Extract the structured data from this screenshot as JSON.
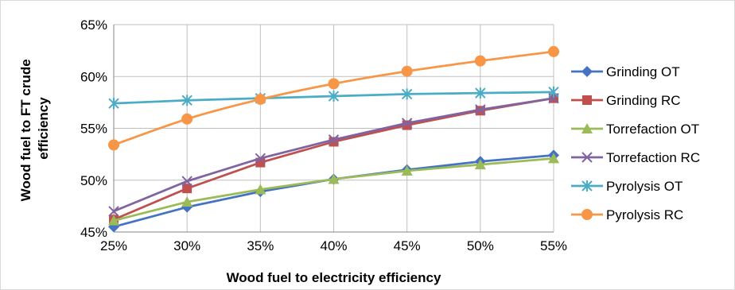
{
  "chart_data": {
    "type": "line",
    "x": [
      "25%",
      "30%",
      "35%",
      "40%",
      "45%",
      "50%",
      "55%"
    ],
    "x_values": [
      25,
      30,
      35,
      40,
      45,
      50,
      55
    ],
    "xlabel": "Wood fuel to electricity efficiency",
    "ylabel_lines": [
      "Wood fuel to FT crude",
      "efficiency"
    ],
    "ylim": [
      45,
      65
    ],
    "yticks": [
      45,
      50,
      55,
      60,
      65
    ],
    "ytick_labels": [
      "45%",
      "50%",
      "55%",
      "60%",
      "65%"
    ],
    "grid": "horizontal and vertical",
    "legend_position": "right",
    "series": [
      {
        "name": "Grinding OT",
        "marker": "diamond",
        "color": "#4472C4",
        "smooth": false,
        "values": [
          45.5,
          47.4,
          48.9,
          50.1,
          51.0,
          51.8,
          52.4
        ]
      },
      {
        "name": "Grinding RC",
        "marker": "square",
        "color": "#C0504D",
        "smooth": false,
        "values": [
          46.2,
          49.2,
          51.7,
          53.7,
          55.3,
          56.7,
          57.9
        ]
      },
      {
        "name": "Torrefaction OT",
        "marker": "triangle",
        "color": "#9BBB59",
        "smooth": false,
        "values": [
          46.1,
          47.9,
          49.1,
          50.1,
          50.9,
          51.5,
          52.1
        ]
      },
      {
        "name": "Torrefaction RC",
        "marker": "x",
        "color": "#8064A2",
        "smooth": false,
        "values": [
          47.0,
          49.9,
          52.1,
          53.9,
          55.5,
          56.8,
          57.9
        ]
      },
      {
        "name": "Pyrolysis OT",
        "marker": "star",
        "color": "#4BACC6",
        "smooth": false,
        "values": [
          57.4,
          57.7,
          57.9,
          58.1,
          58.3,
          58.4,
          58.5
        ]
      },
      {
        "name": "Pyrolysis RC",
        "marker": "circle",
        "color": "#F79646",
        "smooth": true,
        "values": [
          53.4,
          55.9,
          57.8,
          59.3,
          60.5,
          61.5,
          62.4
        ]
      }
    ]
  }
}
